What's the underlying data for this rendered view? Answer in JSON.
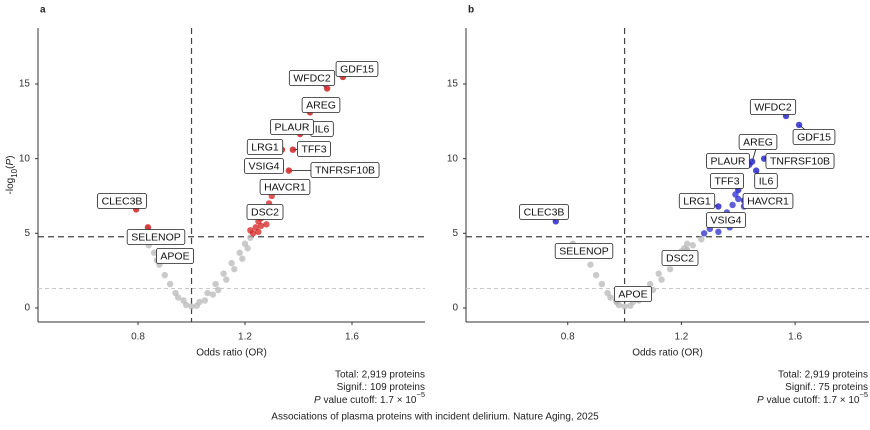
{
  "caption": "Associations of plasma proteins with incident delirium. Nature Aging, 2025",
  "chart_data": [
    {
      "type": "scatter",
      "panel_label": "a",
      "xlabel": "Odds ratio (OR)",
      "ylabel_parts": [
        "-log",
        "10",
        "(",
        "P",
        ")"
      ],
      "xlim": [
        0.426,
        1.873
      ],
      "ylim": [
        -0.94,
        18.75
      ],
      "xticks": [
        0.8,
        1.2,
        1.6
      ],
      "yticks": [
        0,
        5,
        10,
        15
      ],
      "vline": 1,
      "hline": 4.77,
      "hline_light": 1.3,
      "series": [
        {
          "color": "#b8b8b8",
          "x": [
            1.0,
            0.98,
            1.02,
            0.97,
            1.03,
            0.95,
            1.05,
            0.94,
            1.06,
            0.92,
            1.09,
            0.9,
            1.1,
            0.88,
            1.12,
            0.86,
            1.13,
            1.15,
            1.16,
            1.18,
            1.19,
            1.2,
            1.21,
            1.22,
            0.84,
            1.08
          ],
          "values": [
            0.1,
            0.2,
            0.15,
            0.5,
            0.4,
            0.7,
            0.5,
            1.0,
            1.0,
            1.6,
            1.6,
            2.2,
            1.2,
            2.9,
            2.3,
            3.7,
            1.9,
            3.0,
            2.6,
            3.7,
            3.3,
            4.3,
            4.0,
            4.7,
            4.2,
            0.9
          ]
        },
        {
          "color": "#d42020",
          "x": [
            1.23,
            1.24,
            1.25,
            1.26,
            1.27,
            1.25,
            1.28,
            1.29,
            1.3,
            1.22,
            1.26,
            1.3
          ],
          "values": [
            5.0,
            5.4,
            5.8,
            6.0,
            6.3,
            5.1,
            5.6,
            7.0,
            7.5,
            5.2,
            5.5,
            6.2
          ]
        }
      ],
      "labeled_points": [
        {
          "label": "GDF15",
          "x": 1.566,
          "y": 15.47,
          "color": "#d42020"
        },
        {
          "label": "WFDC2",
          "x": 1.507,
          "y": 14.7,
          "color": "#d42020"
        },
        {
          "label": "AREG",
          "x": 1.443,
          "y": 13.1,
          "color": "#d42020"
        },
        {
          "label": "IL6",
          "x": 1.406,
          "y": 11.65,
          "color": "#d42020"
        },
        {
          "label": "PLAUR",
          "x": 1.39,
          "y": 12.0,
          "color": "#d42020"
        },
        {
          "label": "TFF3",
          "x": 1.379,
          "y": 10.6,
          "color": "#d42020"
        },
        {
          "label": "LRG1",
          "x": 1.338,
          "y": 10.6,
          "color": "#d42020"
        },
        {
          "label": "VSIG4",
          "x": 1.331,
          "y": 9.6,
          "color": "#d42020"
        },
        {
          "label": "TNFRSF10B",
          "x": 1.364,
          "y": 9.2,
          "color": "#d42020"
        },
        {
          "label": "HAVCR1",
          "x": 1.338,
          "y": 8.4,
          "color": "#d42020"
        },
        {
          "label": "DSC2",
          "x": 1.264,
          "y": 6.6,
          "color": "#d42020"
        },
        {
          "label": "CLEC3B",
          "x": 0.793,
          "y": 6.6,
          "color": "#d42020"
        },
        {
          "label": "SELENOP",
          "x": 0.837,
          "y": 5.4,
          "color": "#d42020"
        },
        {
          "label": "APOE",
          "x": 0.871,
          "y": 3.2,
          "color": "#b8b8b8"
        }
      ],
      "notes": [
        "Total: 2,919 proteins",
        "Signif.: 109 proteins"
      ],
      "cutoff": {
        "italic": "P",
        "text": " value cutoff: 1.7 × 10",
        "exponent": "−5"
      }
    },
    {
      "type": "scatter",
      "panel_label": "b",
      "xlabel": "Odds ratio (OR)",
      "ylabel_parts": null,
      "xlim": [
        0.442,
        1.86
      ],
      "ylim": [
        -0.94,
        18.75
      ],
      "xticks": [
        0.8,
        1.2,
        1.6
      ],
      "yticks": [
        0,
        5,
        10,
        15
      ],
      "vline": 1,
      "hline": 4.77,
      "hline_light": 1.3,
      "series": [
        {
          "color": "#b8b8b8",
          "x": [
            1.0,
            0.98,
            1.02,
            0.97,
            1.03,
            0.95,
            1.05,
            0.94,
            1.06,
            0.92,
            1.09,
            0.9,
            1.1,
            0.88,
            1.12,
            0.86,
            1.13,
            1.15,
            1.16,
            1.18,
            1.19,
            1.2,
            1.21,
            1.22,
            1.24,
            1.27,
            0.84
          ],
          "values": [
            0.1,
            0.2,
            0.15,
            0.5,
            0.4,
            0.7,
            0.5,
            1.0,
            1.0,
            1.6,
            1.6,
            2.2,
            1.2,
            2.9,
            2.3,
            3.6,
            1.9,
            3.0,
            2.6,
            3.4,
            3.3,
            3.8,
            4.0,
            4.3,
            4.2,
            4.6,
            4.1
          ]
        },
        {
          "color": "#2a2acc",
          "x": [
            1.28,
            1.3,
            1.32,
            1.35,
            1.33,
            1.36,
            1.38,
            1.4,
            1.31,
            1.37,
            1.42,
            1.39
          ],
          "values": [
            5.0,
            5.3,
            5.6,
            5.9,
            5.1,
            6.4,
            6.9,
            7.3,
            6.0,
            5.4,
            6.8,
            7.6
          ]
        }
      ],
      "labeled_points": [
        {
          "label": "WFDC2",
          "x": 1.568,
          "y": 12.86,
          "color": "#2a2acc"
        },
        {
          "label": "GDF15",
          "x": 1.614,
          "y": 12.26,
          "color": "#2a2acc"
        },
        {
          "label": "AREG",
          "x": 1.449,
          "y": 9.8,
          "color": "#2a2acc"
        },
        {
          "label": "TNFRSF10B",
          "x": 1.491,
          "y": 10.0,
          "color": "#2a2acc"
        },
        {
          "label": "PLAUR",
          "x": 1.439,
          "y": 9.6,
          "color": "#2a2acc"
        },
        {
          "label": "IL6",
          "x": 1.463,
          "y": 9.2,
          "color": "#2a2acc"
        },
        {
          "label": "TFF3",
          "x": 1.4,
          "y": 7.9,
          "color": "#2a2acc"
        },
        {
          "label": "HAVCR1",
          "x": 1.42,
          "y": 7.2,
          "color": "#2a2acc"
        },
        {
          "label": "LRG1",
          "x": 1.33,
          "y": 6.8,
          "color": "#2a2acc"
        },
        {
          "label": "VSIG4",
          "x": 1.368,
          "y": 6.2,
          "color": "#2a2acc"
        },
        {
          "label": "CLEC3B",
          "x": 0.758,
          "y": 5.8,
          "color": "#2a2acc"
        },
        {
          "label": "SELENOP",
          "x": 0.818,
          "y": 4.3,
          "color": "#b8b8b8"
        },
        {
          "label": "DSC2",
          "x": 1.22,
          "y": 3.9,
          "color": "#b8b8b8"
        },
        {
          "label": "APOE",
          "x": 0.972,
          "y": 0.4,
          "color": "#b8b8b8"
        }
      ],
      "notes": [
        "Total: 2,919 proteins",
        "Signif.: 75 proteins"
      ],
      "cutoff": {
        "italic": "P",
        "text": " value cutoff: 1.7 × 10",
        "exponent": "−5"
      }
    }
  ]
}
